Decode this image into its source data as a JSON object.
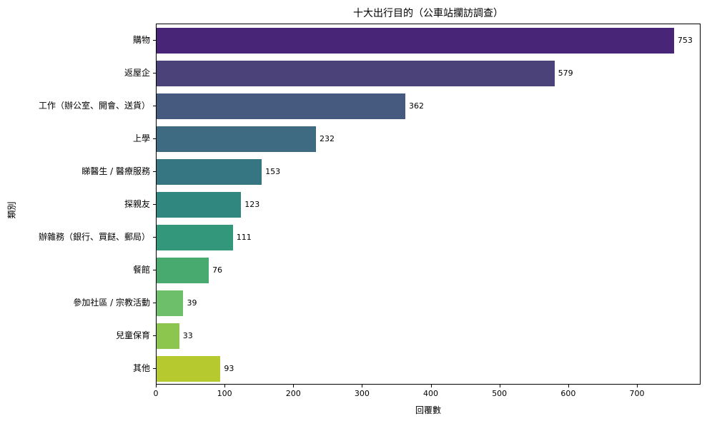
{
  "chart_data": {
    "type": "bar",
    "orientation": "horizontal",
    "title": "十大出行目的（公車站攔訪調查）",
    "xlabel": "回覆數",
    "ylabel": "類別",
    "categories": [
      "購物",
      "返屋企",
      "工作（辦公室、開會、送貨）",
      "上學",
      "睇醫生 / 醫療服務",
      "探親友",
      "辦雜務（銀行、買餸、郵局）",
      "餐館",
      "參加社區 / 宗教活動",
      "兒童保育",
      "其他"
    ],
    "values": [
      753,
      579,
      362,
      232,
      153,
      123,
      111,
      76,
      39,
      33,
      93
    ],
    "colors": [
      "#482576",
      "#4a4279",
      "#46597f",
      "#3f6b82",
      "#357682",
      "#2f8780",
      "#33977b",
      "#48aa6f",
      "#6dbf6a",
      "#8cc64f",
      "#b6c92f"
    ],
    "xlim": [
      0,
      792.6
    ],
    "xticks": [
      0,
      100,
      200,
      300,
      400,
      500,
      600,
      700
    ],
    "grid": false,
    "legend": null,
    "data_labels": true
  }
}
